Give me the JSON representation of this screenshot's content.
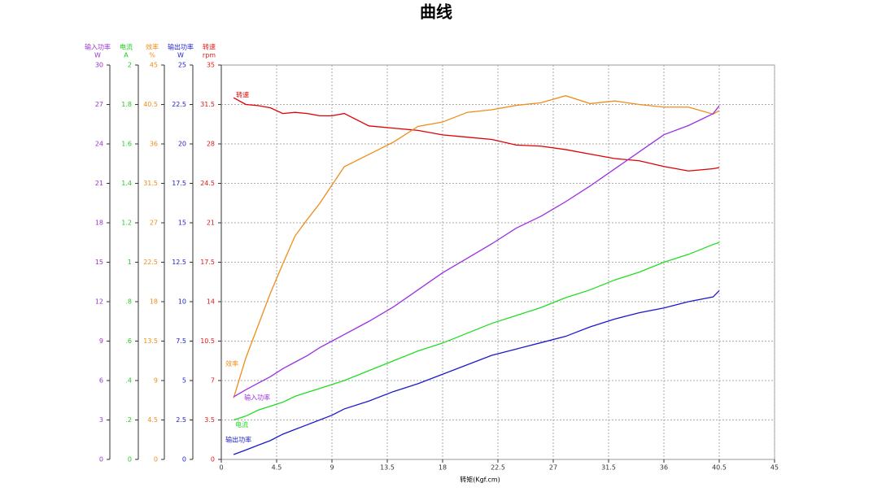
{
  "chart_data": {
    "type": "line",
    "title": "曲线",
    "x_label": "转矩(Kgf.cm)",
    "xlim": [
      0,
      45
    ],
    "xticks": [
      0,
      4.5,
      9,
      13.5,
      18,
      22.5,
      27,
      31.5,
      36,
      40.5,
      45
    ],
    "grid": true,
    "axes": [
      {
        "name": "输入功率",
        "unit": "W",
        "color": "#9933cc",
        "ylim": [
          0,
          30
        ],
        "yticks": [
          0,
          3,
          6,
          9,
          12,
          15,
          18,
          21,
          24,
          27,
          30
        ]
      },
      {
        "name": "电流",
        "unit": "A",
        "color": "#22cc22",
        "ylim": [
          0,
          2
        ],
        "yticks": [
          0,
          {
            "value": 0.2,
            "label": ".2"
          },
          {
            "value": 0.4,
            "label": ".4"
          },
          {
            "value": 0.6,
            "label": ".6"
          },
          {
            "value": 0.8,
            "label": ".8"
          },
          1,
          1.2,
          1.4,
          1.6,
          1.8,
          2
        ]
      },
      {
        "name": "效率",
        "unit": "%",
        "color": "#f08c1a",
        "ylim": [
          0,
          45
        ],
        "yticks": [
          0,
          4.5,
          9,
          13.5,
          18,
          22.5,
          27,
          31.5,
          36,
          40.5,
          45
        ]
      },
      {
        "name": "输出功率",
        "unit": "W",
        "color": "#2222cc",
        "ylim": [
          0,
          25
        ],
        "yticks": [
          0,
          2.5,
          5,
          7.5,
          10,
          12.5,
          15,
          17.5,
          20,
          22.5,
          25
        ]
      },
      {
        "name": "转速",
        "unit": "rpm",
        "color": "#e01818",
        "ylim": [
          0,
          35
        ],
        "yticks": [
          0,
          3.5,
          7,
          10.5,
          14,
          17.5,
          21,
          24.5,
          28,
          31.5,
          35
        ]
      }
    ],
    "x": [
      1,
      2,
      3,
      4,
      5,
      6,
      7,
      8,
      9,
      10,
      12,
      14,
      16,
      18,
      20,
      22,
      24,
      26,
      28,
      30,
      32,
      34,
      36,
      38,
      40,
      40.5
    ],
    "series": [
      {
        "name": "转速",
        "color": "#e00000",
        "axis": 4,
        "values": [
          32.1,
          31.5,
          31.4,
          31.2,
          30.7,
          30.8,
          30.7,
          30.5,
          30.5,
          30.7,
          29.6,
          29.4,
          29.2,
          28.8,
          28.6,
          28.4,
          27.9,
          27.8,
          27.5,
          27.1,
          26.7,
          26.5,
          26.0,
          25.6,
          25.8,
          25.9
        ]
      },
      {
        "name": "效率",
        "color": "#f08c1a",
        "axis": 2,
        "values": [
          7.0,
          11.6,
          15.3,
          19.0,
          22.3,
          25.5,
          27.4,
          29.2,
          31.3,
          33.4,
          34.8,
          36.2,
          38.0,
          38.5,
          39.6,
          39.9,
          40.4,
          40.7,
          41.5,
          40.6,
          40.9,
          40.5,
          40.2,
          40.2,
          39.4,
          39.8
        ]
      },
      {
        "name": "输入功率",
        "color": "#9b30e0",
        "axis": 0,
        "values": [
          4.76,
          5.3,
          5.8,
          6.3,
          6.9,
          7.4,
          7.9,
          8.5,
          9.0,
          9.5,
          10.5,
          11.6,
          12.9,
          14.2,
          15.3,
          16.4,
          17.6,
          18.5,
          19.6,
          20.8,
          22.1,
          23.4,
          24.7,
          25.4,
          26.3,
          26.9
        ]
      },
      {
        "name": "电流",
        "color": "#22dd22",
        "axis": 1,
        "values": [
          0.2,
          0.22,
          0.25,
          0.27,
          0.29,
          0.32,
          0.34,
          0.36,
          0.38,
          0.4,
          0.45,
          0.5,
          0.55,
          0.59,
          0.64,
          0.69,
          0.73,
          0.77,
          0.82,
          0.86,
          0.91,
          0.95,
          1.0,
          1.04,
          1.09,
          1.1
        ]
      },
      {
        "name": "输出功率",
        "color": "#1a1acc",
        "axis": 3,
        "values": [
          0.31,
          0.6,
          0.9,
          1.2,
          1.6,
          1.9,
          2.2,
          2.5,
          2.8,
          3.2,
          3.7,
          4.3,
          4.8,
          5.4,
          6.0,
          6.6,
          7.0,
          7.4,
          7.8,
          8.4,
          8.9,
          9.3,
          9.6,
          10.0,
          10.3,
          10.7
        ]
      }
    ]
  }
}
